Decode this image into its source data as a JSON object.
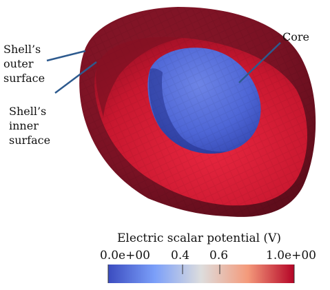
{
  "labels": {
    "shell_outer": [
      "Shell’s",
      "outer",
      "surface"
    ],
    "shell_inner": [
      "Shell’s",
      "inner",
      "surface"
    ],
    "core": "Core"
  },
  "colorbar": {
    "title": "Electric scalar potential (V)",
    "min": 0.0,
    "max": 1.0,
    "ticks": [
      {
        "value": 0.0,
        "label": "0.0e+00"
      },
      {
        "value": 0.4,
        "label": "0.4"
      },
      {
        "value": 0.6,
        "label": "0.6"
      },
      {
        "value": 1.0,
        "label": "1.0e+00"
      }
    ],
    "colors": {
      "low": "#3b4cc0",
      "mid": "#dddddd",
      "high": "#b40426"
    }
  },
  "colors": {
    "shell_outer": "#7a1425",
    "shell_inner": "#c0162d",
    "core": "#4a62d6",
    "callout_line": "#2d5a8e"
  }
}
